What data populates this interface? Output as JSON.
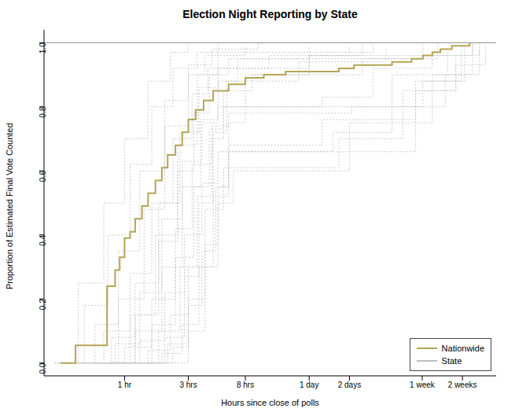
{
  "chart_data": {
    "type": "step",
    "title": "Election Night Reporting by State",
    "x_label": "Hours since close of polls",
    "y_label": "Proportion of Estimated Final Vote Counted",
    "log": "x",
    "legend": "lower right",
    "xlim": [
      0.25,
      600
    ],
    "ylim": [
      -0.04,
      1.04
    ],
    "xticks": [
      {
        "value": 1,
        "label": "1 hr"
      },
      {
        "value": 3,
        "label": "3 hrs"
      },
      {
        "value": 8,
        "label": "8 hrs"
      },
      {
        "value": 24,
        "label": "1 day"
      },
      {
        "value": 48,
        "label": "2 days"
      },
      {
        "value": 168,
        "label": "1 week"
      },
      {
        "value": 336,
        "label": "2 weeks"
      }
    ],
    "yticks": [
      {
        "value": 0,
        "label": "0.0"
      },
      0.2,
      0.4,
      0.6,
      0.8,
      {
        "value": 1,
        "label": "1.0"
      }
    ],
    "hline": 1,
    "series": [
      {
        "name": "State",
        "color": "#bebebe",
        "line_style": "dotted",
        "x": [
          0.3,
          0.45,
          0.7,
          1,
          1.5,
          2.2,
          3
        ],
        "values": [
          0,
          0.25,
          0.5,
          0.7,
          0.88,
          0.97,
          1
        ]
      },
      {
        "name": "State",
        "color": "#bebebe",
        "line_style": "dotted",
        "x": [
          0.35,
          0.6,
          0.9,
          1.3,
          2,
          3,
          4.5,
          10
        ],
        "values": [
          0,
          0.12,
          0.35,
          0.6,
          0.82,
          0.93,
          0.98,
          1
        ]
      },
      {
        "name": "State",
        "color": "#bebebe",
        "line_style": "dotted",
        "x": [
          0.4,
          0.8,
          1.2,
          1.8,
          2.6,
          3.6,
          5,
          24,
          60
        ],
        "values": [
          0,
          0.08,
          0.25,
          0.5,
          0.72,
          0.86,
          0.92,
          0.96,
          1
        ]
      },
      {
        "name": "State",
        "color": "#bebebe",
        "line_style": "dotted",
        "x": [
          0.5,
          1,
          1.6,
          2.4,
          3.2,
          4.5,
          6,
          50,
          170,
          330
        ],
        "values": [
          0,
          0.05,
          0.2,
          0.42,
          0.62,
          0.74,
          0.78,
          0.8,
          0.88,
          0.99
        ]
      },
      {
        "name": "State",
        "color": "#bebebe",
        "line_style": "dotted",
        "x": [
          0.6,
          1.1,
          1.7,
          2.5,
          3.5,
          5
        ],
        "values": [
          0,
          0.15,
          0.4,
          0.68,
          0.9,
          1
        ]
      },
      {
        "name": "State",
        "color": "#bebebe",
        "line_style": "dotted",
        "x": [
          0.7,
          1.3,
          2,
          2.8,
          3.8,
          5,
          48,
          200,
          400
        ],
        "values": [
          0,
          0.07,
          0.22,
          0.4,
          0.56,
          0.66,
          0.75,
          0.9,
          1
        ]
      },
      {
        "name": "State",
        "color": "#bebebe",
        "line_style": "dotted",
        "x": [
          0.8,
          1.5,
          2.2,
          3,
          4,
          5.5,
          40,
          120,
          300
        ],
        "values": [
          0,
          0.04,
          0.15,
          0.3,
          0.48,
          0.61,
          0.7,
          0.85,
          0.97
        ]
      },
      {
        "name": "State",
        "color": "#bebebe",
        "line_style": "dotted",
        "x": [
          0.5,
          0.9,
          1.4,
          2,
          3,
          4,
          8
        ],
        "values": [
          0,
          0.2,
          0.48,
          0.74,
          0.9,
          0.96,
          0.99
        ]
      },
      {
        "name": "State",
        "color": "#bebebe",
        "line_style": "dotted",
        "x": [
          1,
          1.8,
          2.6,
          3.5,
          4.5,
          5.5,
          30,
          72,
          200,
          450
        ],
        "values": [
          0,
          0.1,
          0.3,
          0.52,
          0.7,
          0.8,
          0.83,
          0.92,
          0.96,
          1
        ]
      },
      {
        "name": "State",
        "color": "#bebebe",
        "line_style": "dotted",
        "x": [
          1.2,
          2,
          2.8,
          3.6,
          4.6,
          5.8,
          7,
          24
        ],
        "values": [
          0,
          0.08,
          0.27,
          0.5,
          0.72,
          0.88,
          0.95,
          0.99
        ]
      },
      {
        "name": "State",
        "color": "#bebebe",
        "line_style": "dotted",
        "x": [
          0.4,
          0.7,
          1.1,
          1.6,
          2.3,
          3.2,
          4.2,
          12,
          48
        ],
        "values": [
          0,
          0.1,
          0.28,
          0.5,
          0.7,
          0.84,
          0.92,
          0.96,
          0.99
        ]
      },
      {
        "name": "State",
        "color": "#bebebe",
        "line_style": "dotted",
        "x": [
          1.5,
          2.3,
          3,
          3.8,
          4.8,
          6,
          36,
          100,
          250,
          450
        ],
        "values": [
          0,
          0.05,
          0.18,
          0.35,
          0.55,
          0.66,
          0.72,
          0.8,
          0.9,
          0.98
        ]
      },
      {
        "name": "State",
        "color": "#bebebe",
        "line_style": "dotted",
        "x": [
          0.9,
          1.6,
          2.4,
          3.3,
          4.3,
          5.5,
          9,
          60,
          220
        ],
        "values": [
          0,
          0.12,
          0.33,
          0.55,
          0.73,
          0.85,
          0.9,
          0.95,
          1
        ]
      },
      {
        "name": "State",
        "color": "#bebebe",
        "line_style": "dotted",
        "x": [
          0.3,
          0.5,
          0.75,
          1.1,
          1.6,
          2.3,
          3.5,
          72
        ],
        "values": [
          0,
          0.18,
          0.4,
          0.62,
          0.8,
          0.92,
          0.97,
          1
        ]
      },
      {
        "name": "State",
        "color": "#bebebe",
        "line_style": "dotted",
        "x": [
          1.3,
          2.1,
          3,
          4,
          5,
          6.5,
          48,
          150,
          300,
          500
        ],
        "values": [
          0,
          0.06,
          0.2,
          0.37,
          0.5,
          0.6,
          0.66,
          0.85,
          0.93,
          0.99
        ]
      },
      {
        "name": "State",
        "color": "#bebebe",
        "line_style": "dotted",
        "x": [
          0.6,
          1.2,
          1.9,
          2.7,
          3.7,
          5,
          20,
          90
        ],
        "values": [
          0,
          0.1,
          0.3,
          0.55,
          0.76,
          0.88,
          0.94,
          0.98
        ]
      },
      {
        "name": "State",
        "color": "#bebebe",
        "line_style": "dotted",
        "x": [
          2,
          3,
          4,
          5,
          6,
          8,
          24,
          400
        ],
        "values": [
          0,
          0.1,
          0.3,
          0.55,
          0.75,
          0.9,
          0.96,
          1
        ]
      },
      {
        "name": "State",
        "color": "#bebebe",
        "line_style": "dotted",
        "x": [
          0.45,
          0.85,
          1.3,
          1.9,
          2.7,
          3.8,
          5,
          100,
          260
        ],
        "values": [
          0,
          0.06,
          0.22,
          0.45,
          0.63,
          0.75,
          0.8,
          0.9,
          0.98
        ]
      },
      {
        "name": "State",
        "color": "#bebebe",
        "line_style": "dotted",
        "x": [
          1.1,
          1.9,
          2.7,
          3.6,
          4.6,
          6,
          30,
          150,
          350
        ],
        "values": [
          0,
          0.03,
          0.12,
          0.3,
          0.52,
          0.68,
          0.76,
          0.88,
          0.99
        ]
      },
      {
        "name": "State",
        "color": "#bebebe",
        "line_style": "dotted",
        "x": [
          0.7,
          1.2,
          1.8,
          2.5,
          3.3,
          4.3,
          6,
          170
        ],
        "values": [
          0,
          0.15,
          0.38,
          0.6,
          0.78,
          0.9,
          0.95,
          1
        ]
      },
      {
        "name": "Nationwide",
        "color": "#b3a556",
        "line_style": "solid",
        "x": [
          0.33,
          0.43,
          0.74,
          0.85,
          0.92,
          1,
          1.1,
          1.2,
          1.35,
          1.5,
          1.7,
          1.9,
          2.1,
          2.4,
          2.7,
          3,
          3.4,
          3.9,
          4.6,
          6,
          8,
          11,
          16,
          40,
          52,
          100,
          140,
          170,
          200,
          230,
          280,
          380
        ],
        "values": [
          0,
          0.055,
          0.24,
          0.29,
          0.33,
          0.39,
          0.41,
          0.45,
          0.49,
          0.53,
          0.57,
          0.61,
          0.65,
          0.68,
          0.72,
          0.76,
          0.79,
          0.82,
          0.85,
          0.87,
          0.89,
          0.9,
          0.91,
          0.92,
          0.93,
          0.94,
          0.95,
          0.96,
          0.97,
          0.98,
          0.99,
          1
        ]
      }
    ]
  }
}
